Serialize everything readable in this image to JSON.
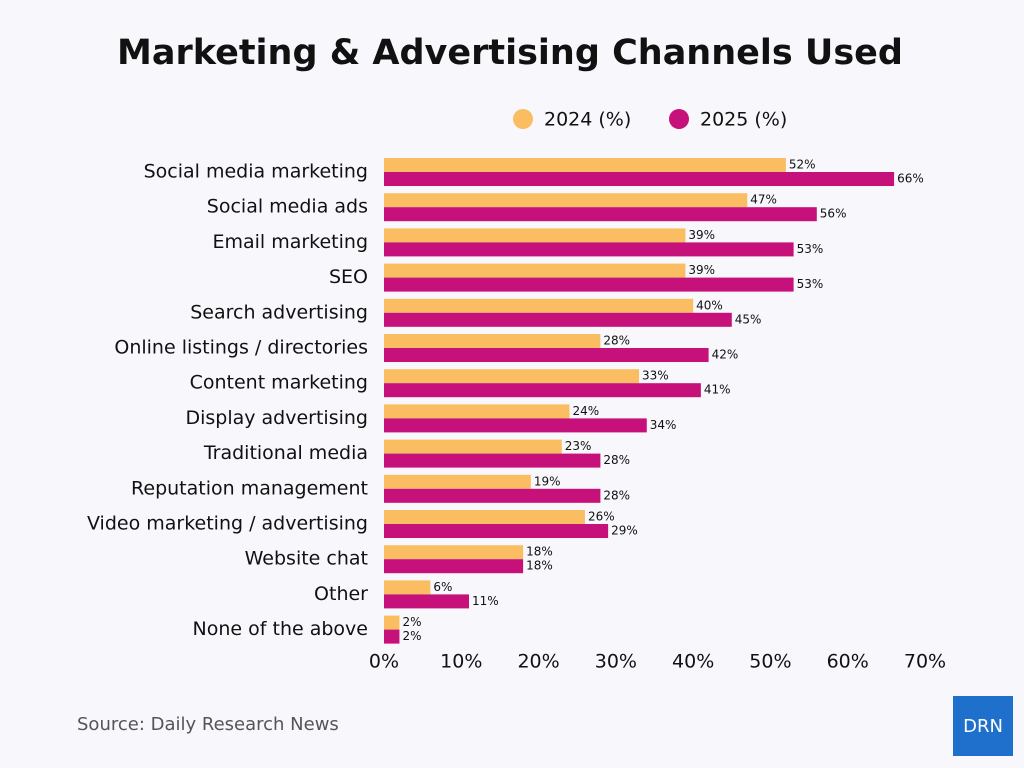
{
  "chart_data": {
    "type": "barh",
    "title": "Marketing & Advertising Channels Used",
    "categories": [
      "Social media marketing",
      "Social media ads",
      "Email marketing",
      "SEO",
      "Search advertising",
      "Online listings / directories",
      "Content marketing",
      "Display advertising",
      "Traditional media",
      "Reputation management",
      "Video marketing / advertising",
      "Website chat",
      "Other",
      "None of the above"
    ],
    "series": [
      {
        "name": "2024 (%)",
        "color": "#fbbd62",
        "values": [
          52,
          47,
          39,
          39,
          40,
          28,
          33,
          24,
          23,
          19,
          26,
          18,
          6,
          2
        ],
        "value_labels": [
          "52%",
          "47%",
          "39%",
          "39%",
          "40%",
          "28%",
          "33%",
          "24%",
          "23%",
          "19%",
          "26%",
          "18%",
          "6%",
          "2%"
        ]
      },
      {
        "name": "2025 (%)",
        "color": "#c6107a",
        "values": [
          66,
          56,
          53,
          53,
          45,
          42,
          41,
          34,
          28,
          28,
          29,
          18,
          11,
          2
        ],
        "value_labels": [
          "66%",
          "56%",
          "53%",
          "53%",
          "45%",
          "42%",
          "41%",
          "34%",
          "28%",
          "28%",
          "29%",
          "18%",
          "11%",
          "2%"
        ]
      }
    ],
    "xlim": [
      0,
      70
    ],
    "xticks": [
      {
        "value": 0,
        "label": "0%"
      },
      {
        "value": 10,
        "label": "10%"
      },
      {
        "value": 20,
        "label": "20%"
      },
      {
        "value": 30,
        "label": "30%"
      },
      {
        "value": 40,
        "label": "40%"
      },
      {
        "value": 50,
        "label": "50%"
      },
      {
        "value": 60,
        "label": "60%"
      },
      {
        "value": 70,
        "label": "70%"
      }
    ],
    "legend": "top",
    "source": "Source: Daily Research News",
    "logo": "DRN"
  }
}
